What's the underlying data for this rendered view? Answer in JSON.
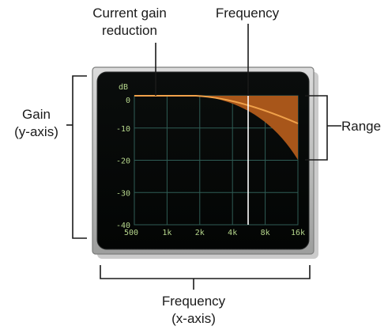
{
  "callouts": {
    "current_gain_reduction": [
      "Current gain",
      "reduction"
    ],
    "frequency_top": "Frequency",
    "gain_axis": [
      "Gain",
      "(y-axis)"
    ],
    "range": "Range",
    "frequency_axis": [
      "Frequency",
      "(x-axis)"
    ]
  },
  "display": {
    "y_unit": "dB",
    "y_ticks": [
      "0",
      "-10",
      "-20",
      "-30",
      "-40"
    ],
    "x_ticks": [
      "500",
      "1k",
      "2k",
      "4k",
      "8k",
      "16k"
    ],
    "colors": {
      "screen_bg": "#050706",
      "grid": "#2f5c55",
      "curve": "#f0a14a",
      "range_fill": "#a8561a",
      "frequency_marker": "#ffffff",
      "tick_text": "#b6d78c",
      "bezel": "#c3c4c3"
    }
  }
}
